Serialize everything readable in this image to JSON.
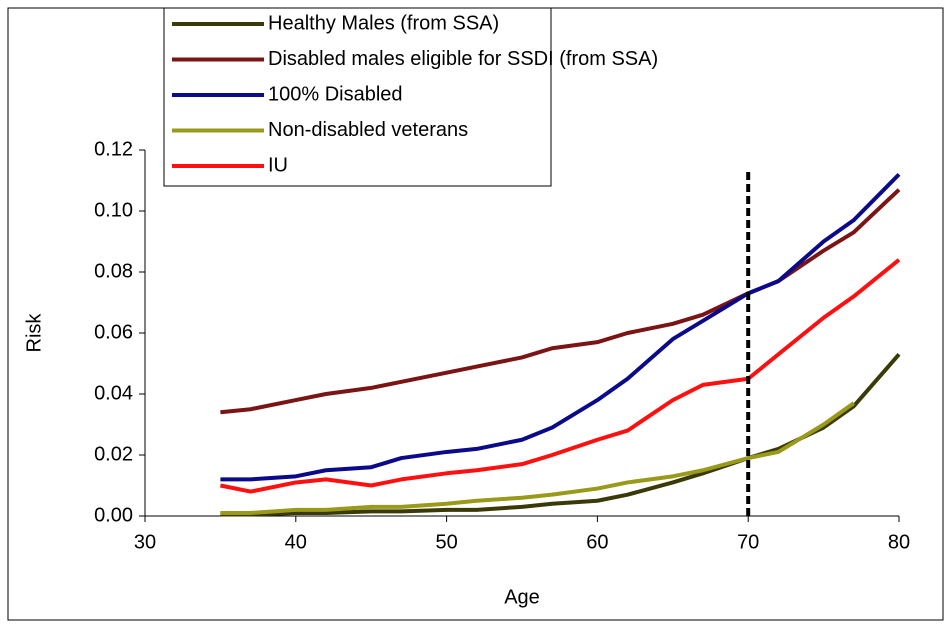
{
  "chart_data": {
    "type": "line",
    "x_label": "Age",
    "y_label": "Risk",
    "x": [
      35,
      37,
      40,
      42,
      45,
      47,
      50,
      52,
      55,
      57,
      60,
      62,
      65,
      67,
      70,
      72,
      75,
      77,
      80
    ],
    "series": [
      {
        "name": "Healthy Males (from SSA)",
        "color": "#3a3a08",
        "values": [
          0.0005,
          0.0005,
          0.001,
          0.001,
          0.0015,
          0.0015,
          0.002,
          0.002,
          0.003,
          0.004,
          0.005,
          0.007,
          0.011,
          0.014,
          0.019,
          0.022,
          0.029,
          0.036,
          0.053
        ]
      },
      {
        "name": "Disabled males eligible for SSDI (from SSA)",
        "color": "#7b1414",
        "values": [
          0.034,
          0.035,
          0.038,
          0.04,
          0.042,
          0.044,
          0.047,
          0.049,
          0.052,
          0.055,
          0.057,
          0.06,
          0.063,
          0.066,
          0.073,
          0.077,
          0.087,
          0.093,
          0.107
        ]
      },
      {
        "name": "100% Disabled",
        "color": "#0a0a8a",
        "values": [
          0.012,
          0.012,
          0.013,
          0.015,
          0.016,
          0.019,
          0.021,
          0.022,
          0.025,
          0.029,
          0.038,
          0.045,
          0.058,
          0.064,
          0.073,
          0.077,
          0.09,
          0.097,
          0.112
        ]
      },
      {
        "name": "Non-disabled veterans",
        "color": "#9a9a1a",
        "values": [
          0.001,
          0.001,
          0.002,
          0.002,
          0.003,
          0.003,
          0.004,
          0.005,
          0.006,
          0.007,
          0.009,
          0.011,
          0.013,
          0.015,
          0.019,
          0.021,
          0.03,
          0.037,
          null
        ]
      },
      {
        "name": "IU",
        "color": "#ff1010",
        "values": [
          0.01,
          0.008,
          0.011,
          0.012,
          0.01,
          0.012,
          0.014,
          0.015,
          0.017,
          0.02,
          0.025,
          0.028,
          0.038,
          0.043,
          0.045,
          0.053,
          0.065,
          0.072,
          0.084
        ]
      }
    ],
    "reference_x": 70,
    "xlim": [
      30,
      80
    ],
    "xticks": [
      30,
      40,
      50,
      60,
      70,
      80
    ],
    "ylim": [
      0,
      0.12
    ],
    "yticks": [
      {
        "value": 0,
        "label": "0.00"
      },
      0.02,
      0.04,
      0.06,
      0.08,
      {
        "value": 0.1,
        "label": "0.10"
      },
      0.12
    ],
    "grid": false,
    "legend": "top"
  }
}
